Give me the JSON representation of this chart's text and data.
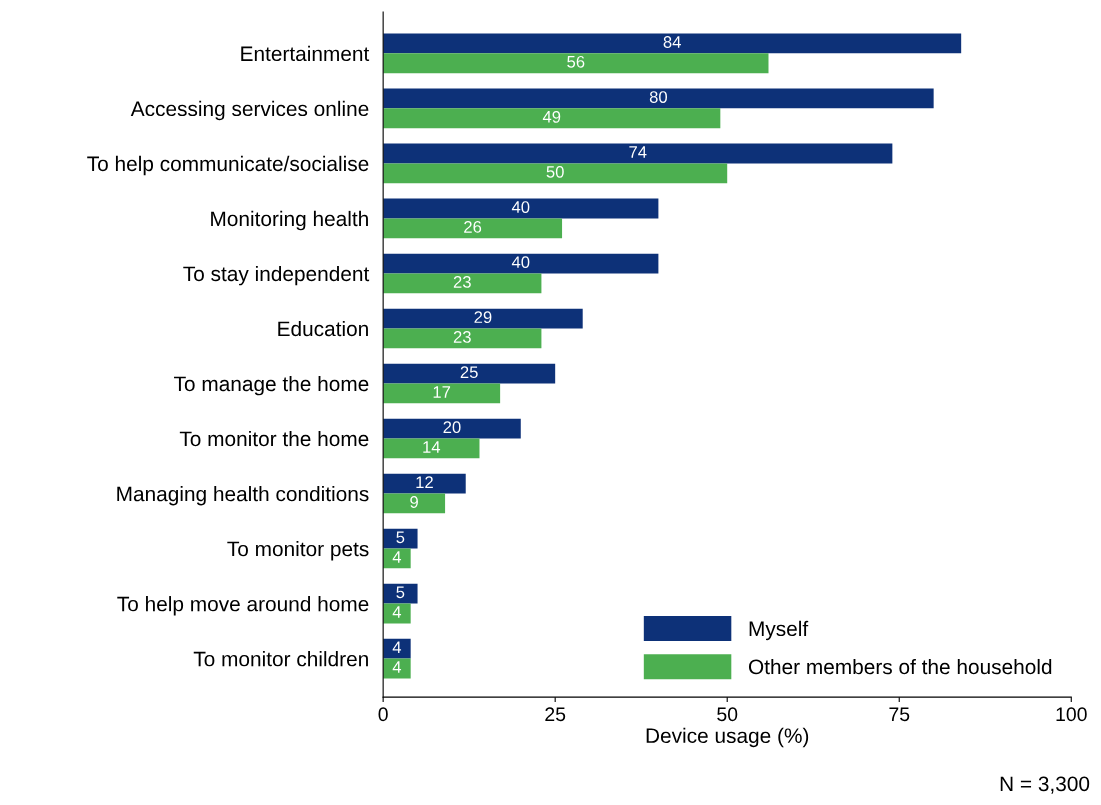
{
  "chart_data": {
    "type": "bar",
    "orientation": "horizontal",
    "xlabel": "Device usage (%)",
    "categories": [
      "Entertainment",
      "Accessing services online",
      "To help communicate/socialise",
      "Monitoring health",
      "To stay independent",
      "Education",
      "To manage the home",
      "To monitor the home",
      "Managing health conditions",
      "To monitor pets",
      "To help move around home",
      "To monitor children"
    ],
    "series": [
      {
        "name": "Myself",
        "color": "#0d3178",
        "values": [
          84,
          80,
          74,
          40,
          40,
          29,
          25,
          20,
          12,
          5,
          5,
          4
        ]
      },
      {
        "name": "Other members of the household",
        "color": "#4caf50",
        "values": [
          56,
          49,
          50,
          26,
          23,
          23,
          17,
          14,
          9,
          4,
          4,
          4
        ]
      }
    ],
    "xlim": [
      0,
      100
    ],
    "xticks": [
      0,
      25,
      50,
      75,
      100
    ],
    "data_labels": true,
    "grid": false,
    "legend": "bottom right",
    "annotations": [
      "N = 3,300"
    ]
  }
}
